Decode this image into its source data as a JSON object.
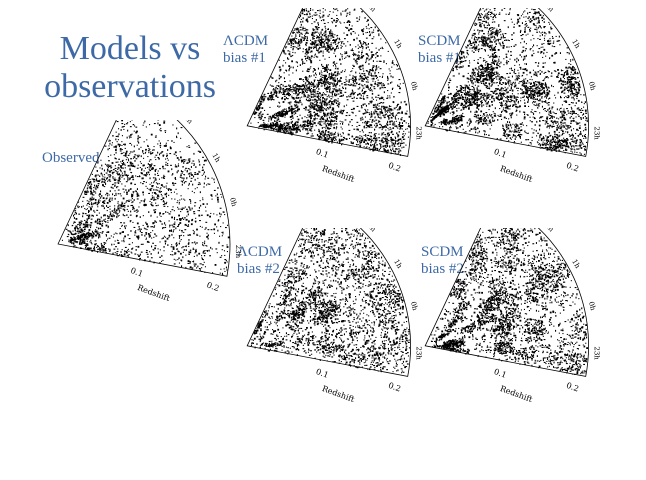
{
  "slide": {
    "title_line1": "Models vs",
    "title_line2": "observations",
    "colors": {
      "title": "#3d6aa6",
      "galaxies": "#000000",
      "background": "#ffffff"
    }
  },
  "panels": [
    {
      "id": "observed",
      "line1": "Observed",
      "line2": "",
      "density": "observed"
    },
    {
      "id": "lcdm-1",
      "line1": "ΛCDM",
      "line2": "bias #1",
      "density": "high-clustered"
    },
    {
      "id": "scdm-1",
      "line1": "SCDM",
      "line2": "bias #1",
      "density": "high-clustered"
    },
    {
      "id": "lcdm-2",
      "line1": "ΛCDM",
      "line2": "bias #2",
      "density": "medium"
    },
    {
      "id": "scdm-2",
      "line1": "SCDM",
      "line2": "bias #2",
      "density": "high-clustered"
    }
  ],
  "wedge_axis": {
    "radial_label": "Redshift",
    "radial_ticks": [
      "0.1",
      "0.2"
    ],
    "arc_ticks": [
      "3h",
      "2h",
      "1h",
      "0h",
      "23h"
    ]
  }
}
